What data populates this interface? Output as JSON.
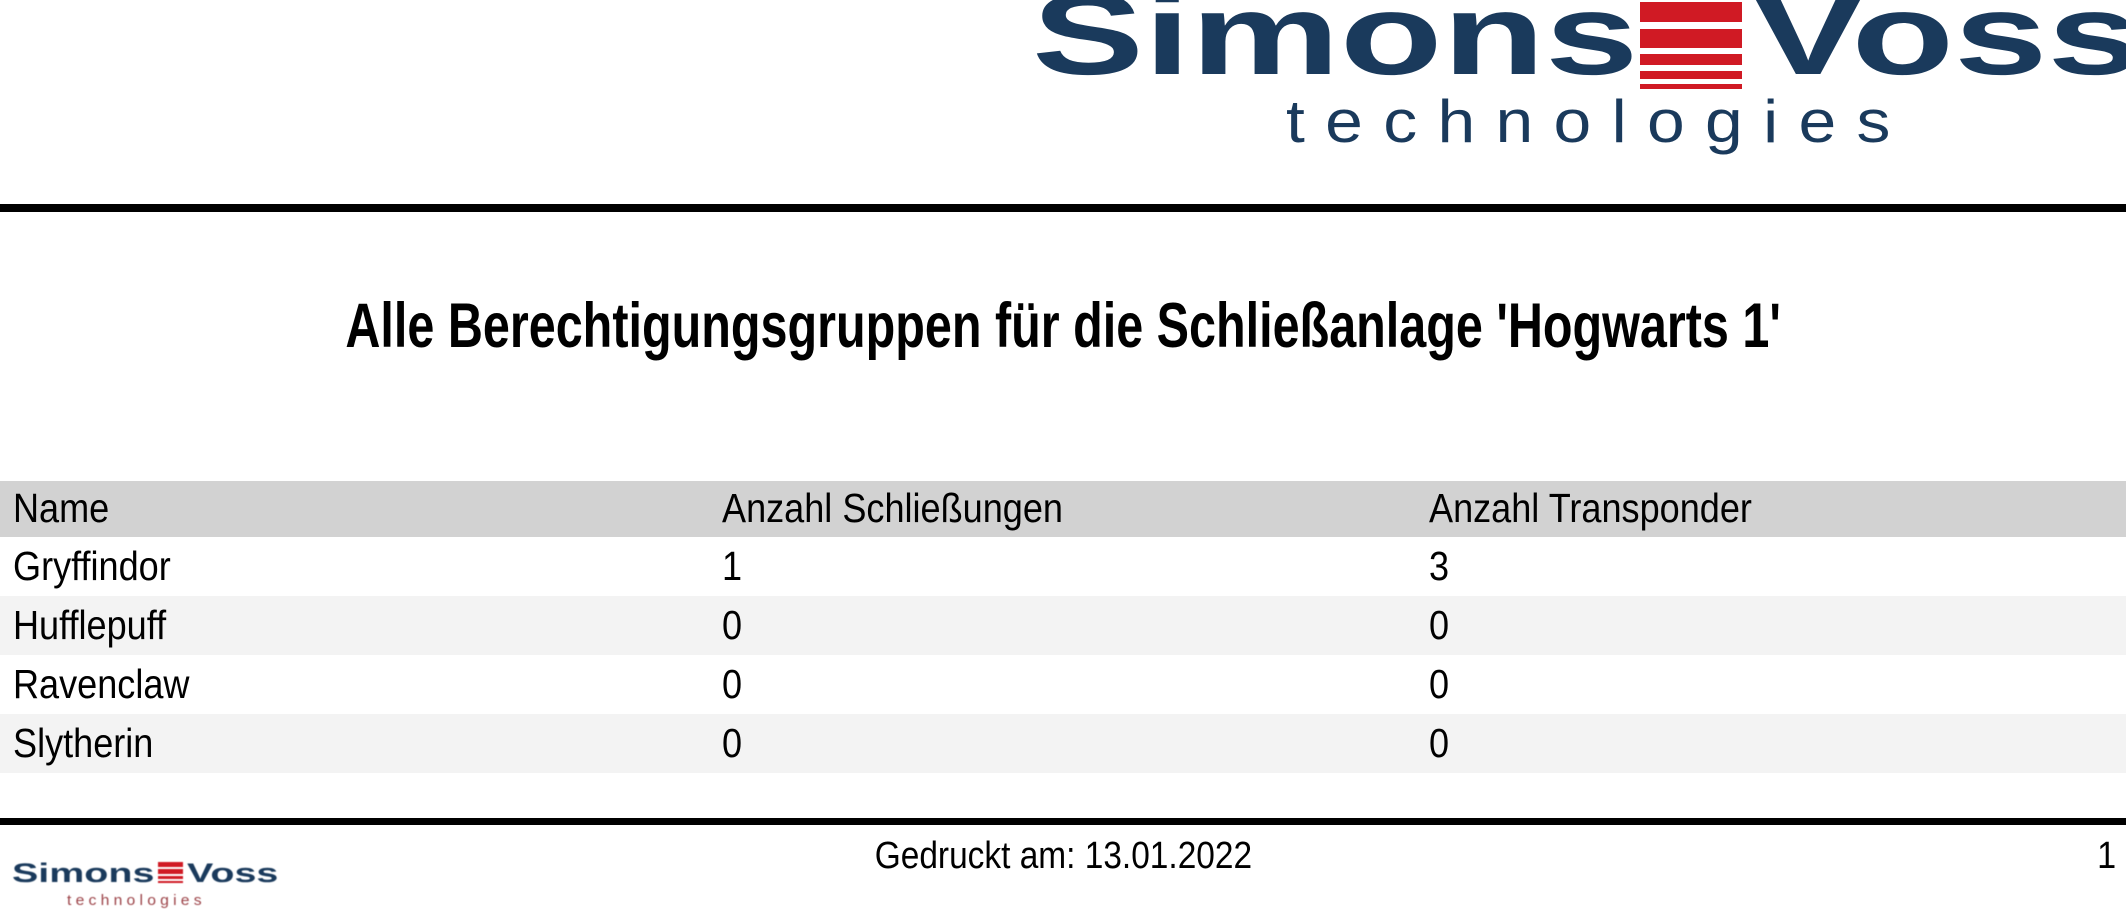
{
  "logo": {
    "word1": "Simons",
    "word2": "Voss",
    "subtitle": "technologies"
  },
  "title": "Alle Berechtigungsgruppen für die Schließanlage 'Hogwarts 1'",
  "table": {
    "columns": [
      "Name",
      "Anzahl Schließungen",
      "Anzahl Transponder"
    ],
    "rows": [
      {
        "name": "Gryffindor",
        "anzahl_schliessungen": "1",
        "anzahl_transponder": "3"
      },
      {
        "name": "Hufflepuff",
        "anzahl_schliessungen": "0",
        "anzahl_transponder": "0"
      },
      {
        "name": "Ravenclaw",
        "anzahl_schliessungen": "0",
        "anzahl_transponder": "0"
      },
      {
        "name": "Slytherin",
        "anzahl_schliessungen": "0",
        "anzahl_transponder": "0"
      }
    ]
  },
  "footer": {
    "printed_label": "Gedruckt am: 13.01.2022",
    "page_number": "1",
    "logo": {
      "word1": "Simons",
      "word2": "Voss",
      "subtitle": "technologies"
    }
  },
  "colors": {
    "navy": "#1a3a5c",
    "red": "#d01a24",
    "tech_red": "#9c4348",
    "header_bg": "#d2d2d2",
    "stripe_bg": "#f3f3f3",
    "rule": "#000000"
  }
}
